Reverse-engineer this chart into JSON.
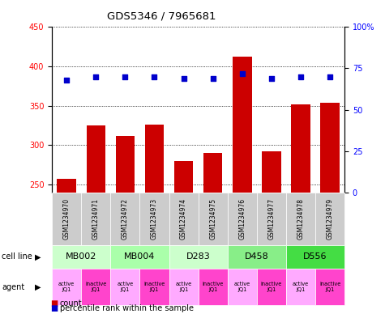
{
  "title": "GDS5346 / 7965681",
  "samples": [
    "GSM1234970",
    "GSM1234971",
    "GSM1234972",
    "GSM1234973",
    "GSM1234974",
    "GSM1234975",
    "GSM1234976",
    "GSM1234977",
    "GSM1234978",
    "GSM1234979"
  ],
  "counts": [
    257,
    325,
    312,
    326,
    280,
    290,
    412,
    292,
    352,
    354
  ],
  "percentiles": [
    68,
    70,
    70,
    70,
    69,
    69,
    72,
    69,
    70,
    70
  ],
  "cell_lines": [
    {
      "label": "MB002",
      "cols": [
        0,
        1
      ],
      "color": "#ccffcc"
    },
    {
      "label": "MB004",
      "cols": [
        2,
        3
      ],
      "color": "#aaffaa"
    },
    {
      "label": "D283",
      "cols": [
        4,
        5
      ],
      "color": "#ccffcc"
    },
    {
      "label": "D458",
      "cols": [
        6,
        7
      ],
      "color": "#88ee88"
    },
    {
      "label": "D556",
      "cols": [
        8,
        9
      ],
      "color": "#44dd44"
    }
  ],
  "agents_labels": [
    "active\nJQ1",
    "inactive\nJQ1",
    "active\nJQ1",
    "inactive\nJQ1",
    "active\nJQ1",
    "inactive\nJQ1",
    "active\nJQ1",
    "inactive\nJQ1",
    "active\nJQ1",
    "inactive\nJQ1"
  ],
  "active_color": "#ffaaff",
  "inactive_color": "#ff44cc",
  "gsm_color": "#cccccc",
  "ylim_left": [
    240,
    450
  ],
  "ylim_right": [
    0,
    100
  ],
  "yticks_left": [
    250,
    300,
    350,
    400,
    450
  ],
  "yticks_right": [
    0,
    25,
    50,
    75,
    100
  ],
  "bar_color": "#cc0000",
  "dot_color": "#0000cc",
  "background_color": "#ffffff"
}
